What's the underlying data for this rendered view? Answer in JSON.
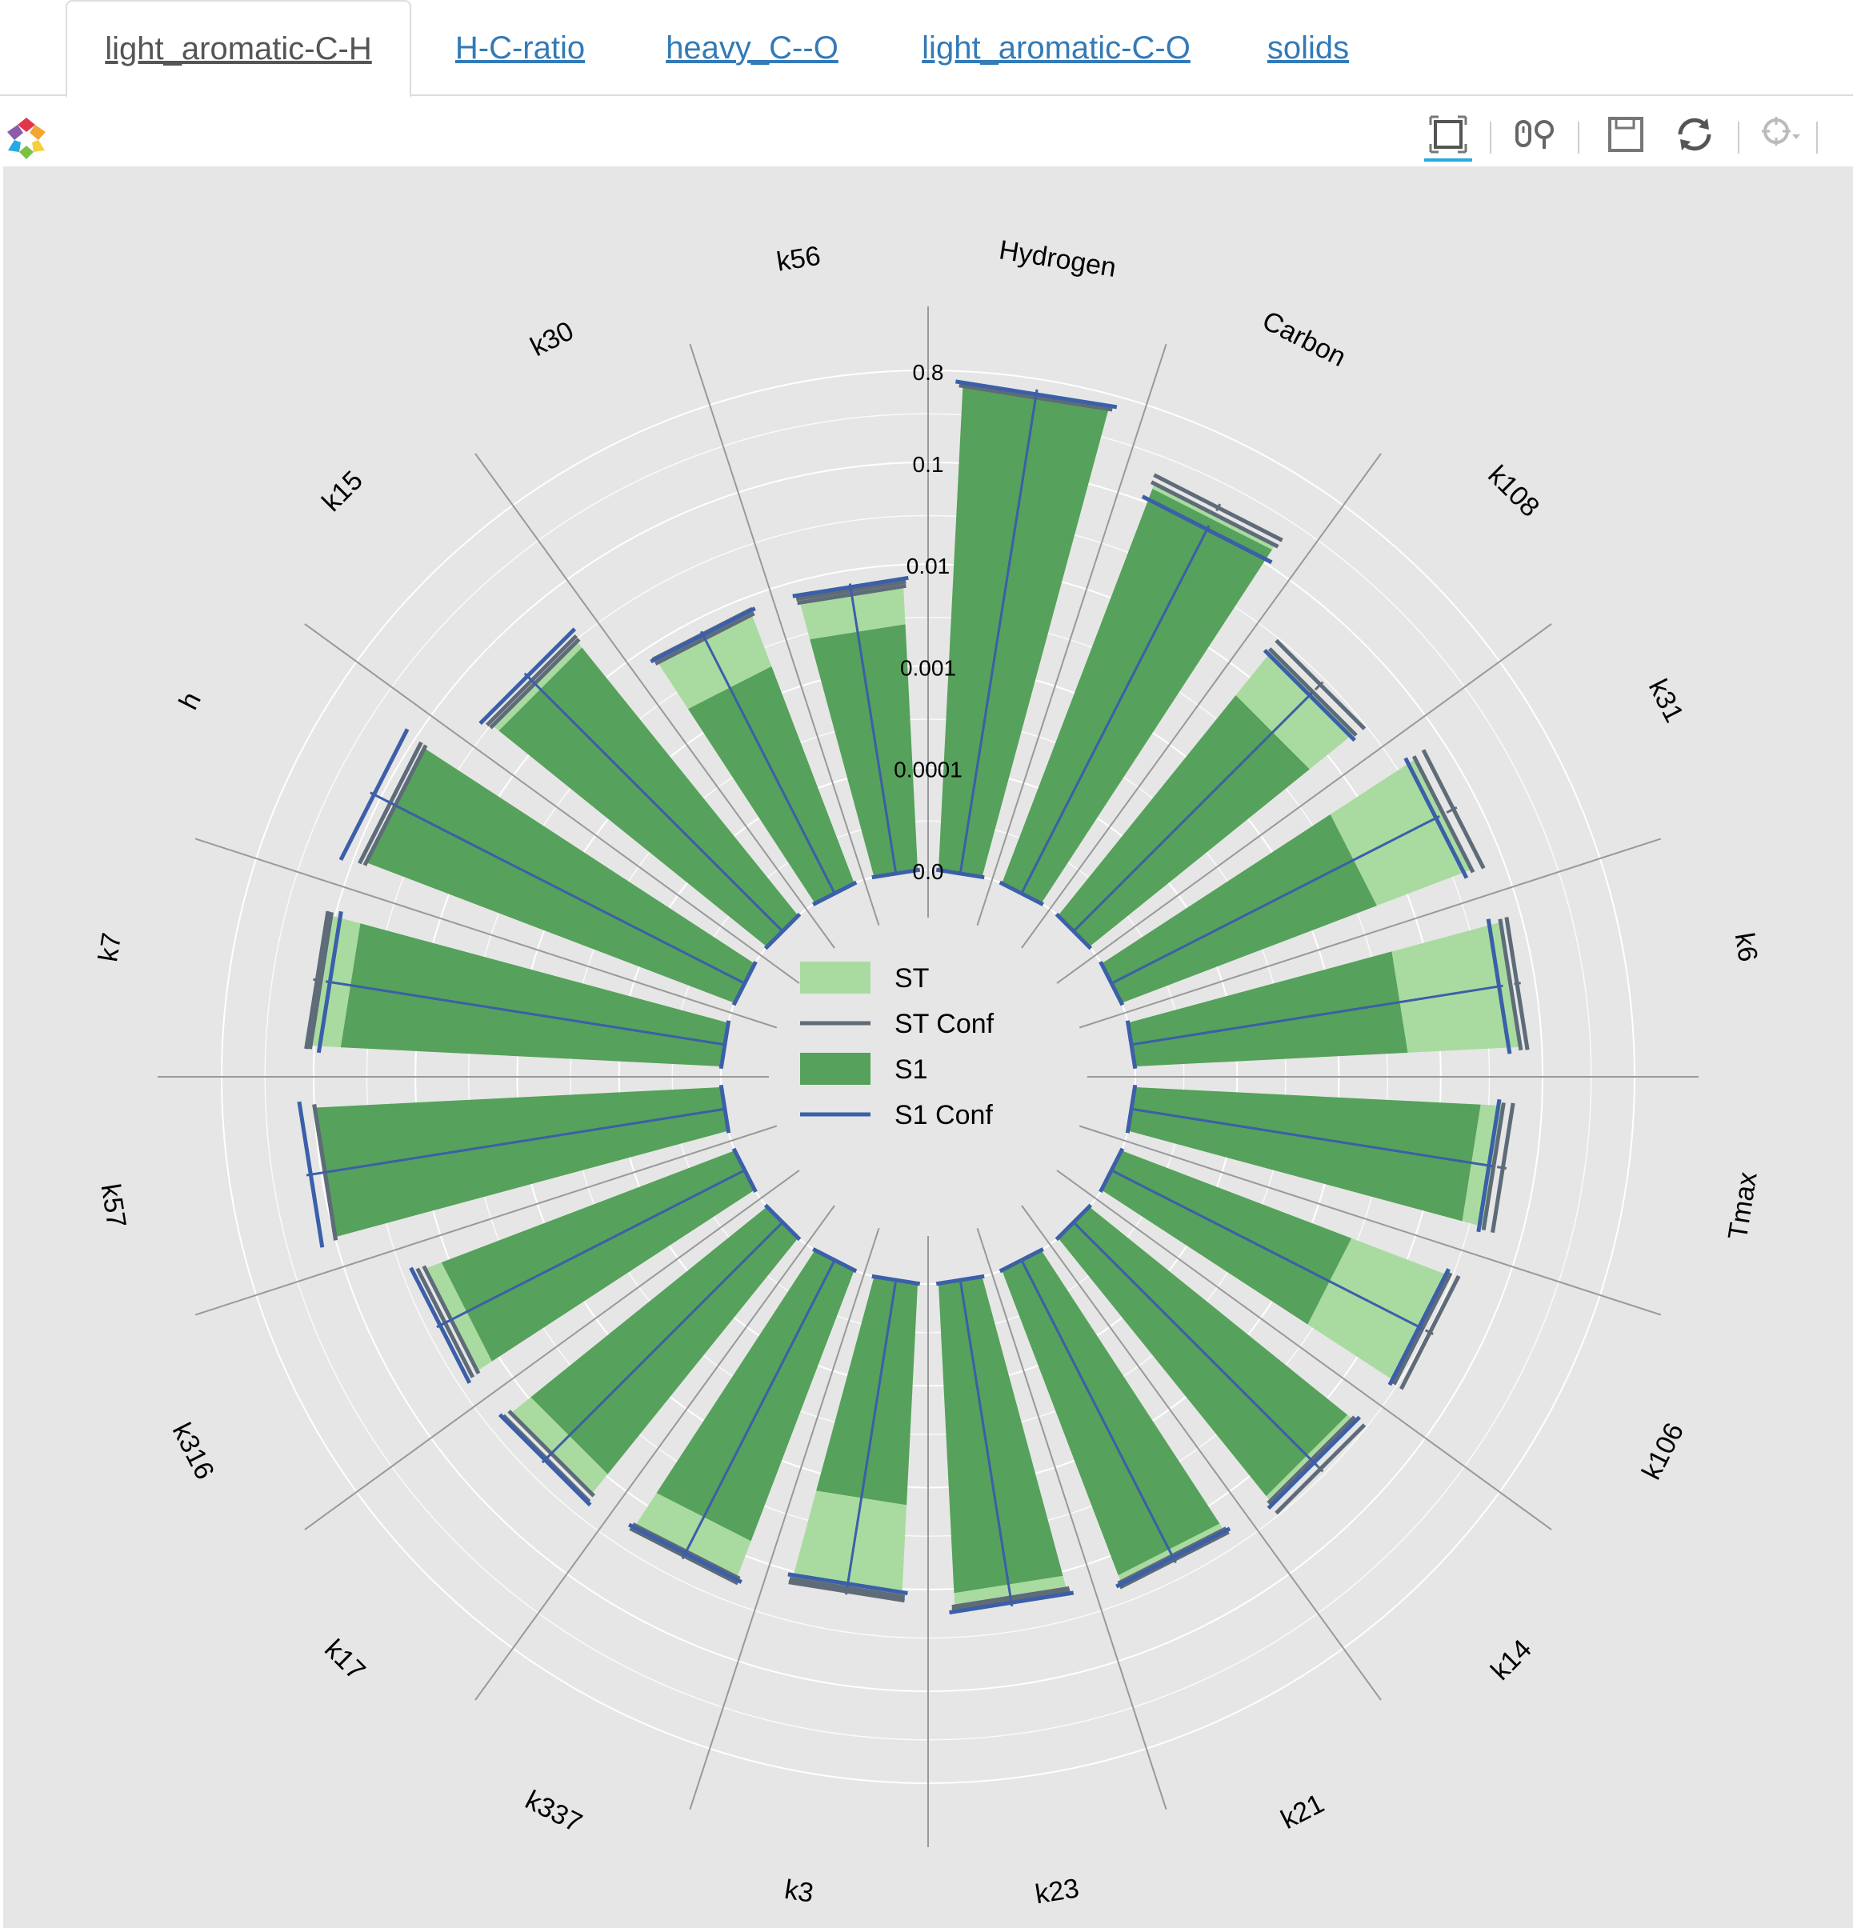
{
  "tabs": [
    {
      "label": "light_aromatic-C-H",
      "active": true
    },
    {
      "label": "H-C-ratio",
      "active": false
    },
    {
      "label": "heavy_C--O",
      "active": false
    },
    {
      "label": "light_aromatic-C-O",
      "active": false
    },
    {
      "label": "solids",
      "active": false
    }
  ],
  "toolbar": {
    "tools": [
      "box-zoom-icon",
      "wheel-zoom-icon",
      "save-icon",
      "reset-icon",
      "hover-crosshair-icon"
    ]
  },
  "colors": {
    "st": "#a9dba0",
    "s1": "#56a15b",
    "st_conf": "#5e6b78",
    "s1_conf": "#3b5fa8",
    "background": "#e6e6e6",
    "grid": "#ffffff",
    "spoke": "#999999"
  },
  "chart_data": {
    "type": "radial-bar",
    "scale": "log",
    "radial_ticks": [
      "0.0",
      "0.0001",
      "0.001",
      "0.01",
      "0.1",
      "0.8"
    ],
    "legend": [
      "ST",
      "ST Conf",
      "S1",
      "S1 Conf"
    ],
    "legend_placement": "center",
    "grid": true,
    "categories": [
      "Hydrogen",
      "Carbon",
      "k108",
      "k31",
      "k6",
      "Tmax",
      "k106",
      "k14",
      "k21",
      "k23",
      "k3",
      "k337",
      "k17",
      "k316",
      "k57",
      "k7",
      "h",
      "k15",
      "k30",
      "k56"
    ],
    "series": [
      {
        "name": "ST",
        "values": [
          0.58,
          0.16,
          0.022,
          0.048,
          0.062,
          0.042,
          0.028,
          0.021,
          0.019,
          0.015,
          0.012,
          0.017,
          0.017,
          0.018,
          0.1,
          0.11,
          0.075,
          0.029,
          0.0067,
          0.0062
        ]
      },
      {
        "name": "ST Conf",
        "values": [
          0.58,
          0.19,
          0.028,
          0.062,
          0.072,
          0.052,
          0.034,
          0.028,
          0.021,
          0.016,
          0.013,
          0.019,
          0.02,
          0.021,
          0.1,
          0.12,
          0.085,
          0.032,
          0.0075,
          0.0068
        ]
      },
      {
        "name": "S1",
        "values": [
          0.58,
          0.14,
          0.006,
          0.0048,
          0.0048,
          0.025,
          0.0026,
          0.018,
          0.016,
          0.011,
          0.0015,
          0.007,
          0.0095,
          0.012,
          0.1,
          0.055,
          0.075,
          0.024,
          0.0019,
          0.0026
        ]
      },
      {
        "name": "S1 Conf",
        "values": [
          0.63,
          0.11,
          0.02,
          0.04,
          0.048,
          0.038,
          0.026,
          0.023,
          0.02,
          0.017,
          0.011,
          0.018,
          0.021,
          0.024,
          0.14,
          0.09,
          0.13,
          0.037,
          0.0074,
          0.0074
        ]
      }
    ]
  }
}
